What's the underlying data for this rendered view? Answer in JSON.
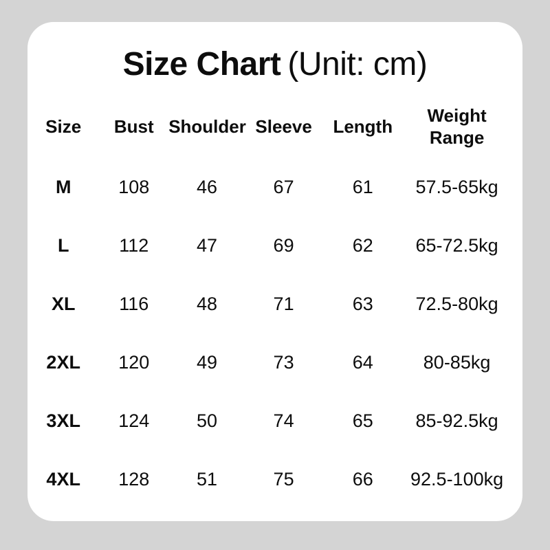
{
  "title": {
    "bold": "Size Chart",
    "regular": "(Unit: cm)"
  },
  "chart_data": {
    "type": "table",
    "title": "Size Chart (Unit: cm)",
    "unit": "cm",
    "columns": [
      "Size",
      "Bust",
      "Shoulder",
      "Sleeve",
      "Length",
      "Weight Range"
    ],
    "rows": [
      [
        "M",
        "108",
        "46",
        "67",
        "61",
        "57.5-65kg"
      ],
      [
        "L",
        "112",
        "47",
        "69",
        "62",
        "65-72.5kg"
      ],
      [
        "XL",
        "116",
        "48",
        "71",
        "63",
        "72.5-80kg"
      ],
      [
        "2XL",
        "120",
        "49",
        "73",
        "64",
        "80-85kg"
      ],
      [
        "3XL",
        "124",
        "50",
        "74",
        "65",
        "85-92.5kg"
      ],
      [
        "4XL",
        "128",
        "51",
        "75",
        "66",
        "92.5-100kg"
      ]
    ]
  },
  "colors": {
    "page_background": "#d4d4d4",
    "card_background": "#ffffff",
    "text": "#0d0d0d"
  }
}
